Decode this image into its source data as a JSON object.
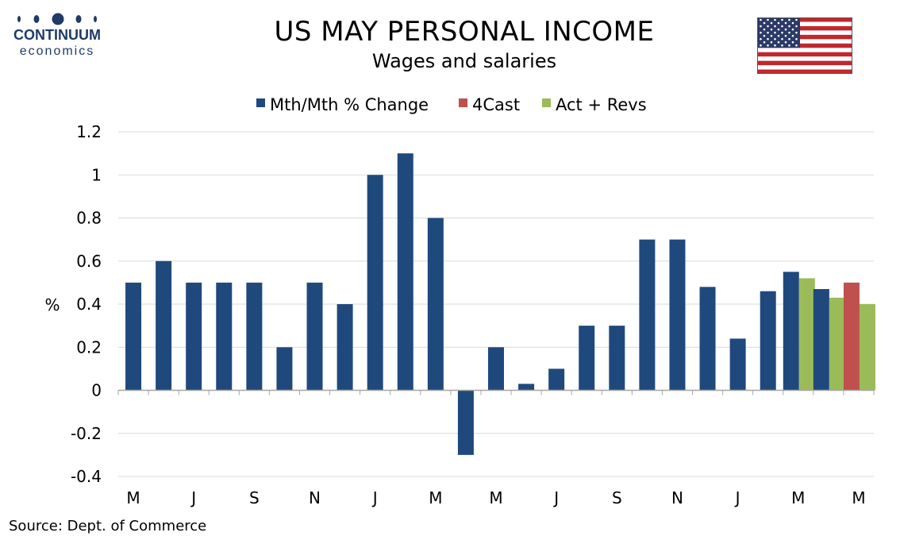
{
  "header": {
    "title": "US MAY PERSONAL INCOME",
    "subtitle": "Wages and salaries",
    "logo_brand": "CONTINUUM",
    "logo_sub": "economics",
    "flag_icon": "us-flag-icon"
  },
  "footer": {
    "source": "Source: Dept. of Commerce"
  },
  "colors": {
    "primary": "#1f497d",
    "forecast": "#c0504d",
    "revisions": "#9bbb59",
    "grid": "#d9d9d9",
    "axis": "#a6a6a6",
    "logo": "#1f3b66"
  },
  "chart_data": {
    "type": "bar",
    "ylabel": "%",
    "xlabel": "",
    "ylim": [
      -0.4,
      1.2
    ],
    "yticks": [
      "1.2",
      "1",
      "0.8",
      "0.6",
      "0.4",
      "0.2",
      "0",
      "-0.2",
      "-0.4"
    ],
    "x_tick_labels": [
      "M",
      "J",
      "S",
      "N",
      "J",
      "M",
      "M",
      "J",
      "S",
      "N",
      "J",
      "M",
      "M"
    ],
    "grid": true,
    "legend": "top-center",
    "series": [
      {
        "name": "Mth/Mth % Change",
        "color": "#1f497d",
        "values": [
          0.5,
          0.6,
          0.5,
          0.5,
          0.5,
          0.2,
          0.5,
          0.4,
          1.0,
          1.1,
          0.8,
          -0.3,
          0.2,
          0.03,
          0.1,
          0.3,
          0.3,
          0.7,
          0.7,
          0.48,
          0.24,
          0.46,
          0.55,
          0.47,
          null
        ]
      },
      {
        "name": "4Cast",
        "color": "#c0504d",
        "values": [
          null,
          null,
          null,
          null,
          null,
          null,
          null,
          null,
          null,
          null,
          null,
          null,
          null,
          null,
          null,
          null,
          null,
          null,
          null,
          null,
          null,
          null,
          null,
          null,
          0.5
        ]
      },
      {
        "name": "Act + Revs",
        "color": "#9bbb59",
        "values": [
          null,
          null,
          null,
          null,
          null,
          null,
          null,
          null,
          null,
          null,
          null,
          null,
          null,
          null,
          null,
          null,
          null,
          null,
          null,
          null,
          null,
          null,
          0.52,
          0.43,
          0.4
        ]
      }
    ]
  }
}
